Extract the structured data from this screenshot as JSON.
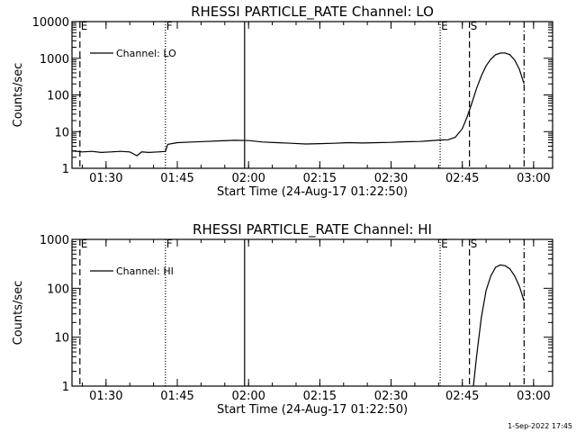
{
  "chart_data": [
    {
      "type": "line",
      "title": "RHESSI PARTICLE_RATE Channel: LO",
      "xlabel": "Start Time (24-Aug-17 01:22:50)",
      "ylabel": "Counts/sec",
      "yscale": "log",
      "ylim": [
        1,
        10000
      ],
      "xlim": [
        "01:22:50",
        "03:04:00"
      ],
      "x_ticks": [
        "01:30",
        "01:45",
        "02:00",
        "02:15",
        "02:30",
        "02:45",
        "03:00"
      ],
      "y_ticks": [
        "1",
        "10",
        "100",
        "1000",
        "10000"
      ],
      "legend": {
        "label": "Channel: LO",
        "placement": "top-left"
      },
      "markers": [
        {
          "time": "01:24:30",
          "label": "E",
          "style": "dashed"
        },
        {
          "time": "01:42:30",
          "label": "F",
          "style": "dotted"
        },
        {
          "time": "01:59:10",
          "label": "",
          "style": "solid"
        },
        {
          "time": "02:40:20",
          "label": "E",
          "style": "dotted"
        },
        {
          "time": "02:46:30",
          "label": "S",
          "style": "dashed"
        },
        {
          "time": "02:58:00",
          "label": "",
          "style": "dashdot"
        }
      ],
      "series": [
        {
          "name": "Channel: LO",
          "x": [
            "01:22:50",
            "01:25:00",
            "01:27:00",
            "01:29:00",
            "01:31:00",
            "01:33:00",
            "01:35:00",
            "01:36:30",
            "01:37:30",
            "01:39:00",
            "01:41:00",
            "01:42:30",
            "01:43:00",
            "01:45:00",
            "01:48:00",
            "01:51:00",
            "01:54:00",
            "01:57:00",
            "02:00:00",
            "02:03:00",
            "02:06:00",
            "02:09:00",
            "02:12:00",
            "02:15:00",
            "02:18:00",
            "02:21:00",
            "02:24:00",
            "02:27:00",
            "02:30:00",
            "02:33:00",
            "02:36:00",
            "02:38:00",
            "02:40:00",
            "02:42:00",
            "02:43:30",
            "02:45:00",
            "02:46:00",
            "02:47:00",
            "02:48:00",
            "02:49:00",
            "02:50:00",
            "02:51:00",
            "02:52:00",
            "02:53:00",
            "02:54:00",
            "02:55:00",
            "02:56:00",
            "02:57:00",
            "02:58:00"
          ],
          "y": [
            3,
            2.8,
            2.9,
            2.7,
            2.8,
            2.9,
            2.8,
            2.2,
            2.8,
            2.7,
            2.8,
            2.9,
            4.5,
            5.0,
            5.2,
            5.4,
            5.6,
            5.8,
            5.7,
            5.2,
            5.0,
            4.8,
            4.6,
            4.7,
            4.8,
            5.0,
            4.9,
            5.0,
            5.1,
            5.3,
            5.4,
            5.6,
            5.9,
            6.0,
            7.0,
            12,
            25,
            60,
            150,
            330,
            620,
            950,
            1250,
            1380,
            1400,
            1250,
            900,
            500,
            200
          ]
        }
      ]
    },
    {
      "type": "line",
      "title": "RHESSI PARTICLE_RATE Channel: HI",
      "xlabel": "Start Time (24-Aug-17 01:22:50)",
      "ylabel": "Counts/sec",
      "yscale": "log",
      "ylim": [
        1,
        1000
      ],
      "xlim": [
        "01:22:50",
        "03:04:00"
      ],
      "x_ticks": [
        "01:30",
        "01:45",
        "02:00",
        "02:15",
        "02:30",
        "02:45",
        "03:00"
      ],
      "y_ticks": [
        "1",
        "10",
        "100",
        "1000"
      ],
      "legend": {
        "label": "Channel: HI",
        "placement": "top-left"
      },
      "markers": [
        {
          "time": "01:24:30",
          "label": "E",
          "style": "dashed"
        },
        {
          "time": "01:42:30",
          "label": "F",
          "style": "dotted"
        },
        {
          "time": "01:59:10",
          "label": "",
          "style": "solid"
        },
        {
          "time": "02:40:20",
          "label": "E",
          "style": "dotted"
        },
        {
          "time": "02:46:30",
          "label": "S",
          "style": "dashed"
        },
        {
          "time": "02:58:00",
          "label": "",
          "style": "dashdot"
        }
      ],
      "series": [
        {
          "name": "Channel: HI",
          "x": [
            "02:47:20",
            "02:48:00",
            "02:49:00",
            "02:50:00",
            "02:51:00",
            "02:52:00",
            "02:53:00",
            "02:54:00",
            "02:55:00",
            "02:56:00",
            "02:57:00",
            "02:58:00"
          ],
          "y": [
            1,
            4,
            25,
            90,
            180,
            270,
            300,
            290,
            250,
            180,
            110,
            55
          ]
        }
      ]
    }
  ],
  "footer": {
    "timestamp": "1-Sep-2022 17:45"
  }
}
